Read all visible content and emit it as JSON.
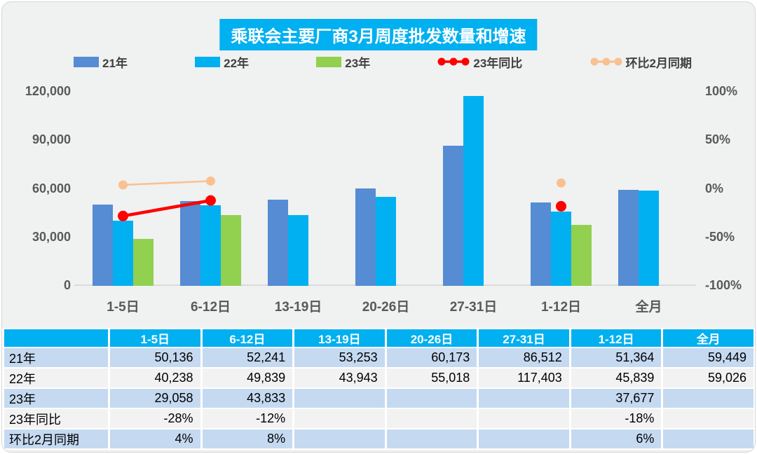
{
  "title": "乘联会主要厂商3月周度批发数量和增速",
  "colors": {
    "banner_bg": "#00B0F0",
    "bar_21": "#558CD3",
    "bar_22": "#00B0F0",
    "bar_23": "#92D050",
    "line_yoy": "#FF0000",
    "line_mom": "#FAC090",
    "table_header_bg": "#00B0F0",
    "table_row_blue": "#C5D9F1",
    "table_row_gray": "#F2F2F2",
    "axis_text": "#595959",
    "page_bg": "#F0F1F1",
    "baseline": "#DBDBDB"
  },
  "chart_data": {
    "type": "bar",
    "subtype": "clustered bars with two overlay line series on secondary percent axis",
    "title": "乘联会主要厂商3月周度批发数量和增速",
    "categories": [
      "1-5日",
      "6-12日",
      "13-19日",
      "20-26日",
      "27-31日",
      "1-12日",
      "全月"
    ],
    "series": [
      {
        "name": "21年",
        "type": "bar",
        "color_key": "bar_21",
        "values": [
          50136,
          52241,
          53253,
          60173,
          86512,
          51364,
          59449
        ]
      },
      {
        "name": "22年",
        "type": "bar",
        "color_key": "bar_22",
        "values": [
          40238,
          49839,
          43943,
          55018,
          117403,
          45839,
          59026
        ]
      },
      {
        "name": "23年",
        "type": "bar",
        "color_key": "bar_23",
        "values": [
          29058,
          43833,
          null,
          null,
          null,
          37677,
          null
        ]
      },
      {
        "name": "23年同比",
        "type": "line",
        "color_key": "line_yoy",
        "axis": "right",
        "values_pct": [
          -28,
          -12,
          null,
          null,
          null,
          -18,
          null
        ]
      },
      {
        "name": "环比2月同期",
        "type": "line",
        "color_key": "line_mom",
        "axis": "right",
        "values_pct": [
          4,
          8,
          null,
          null,
          null,
          6,
          null
        ]
      }
    ],
    "left_axis": {
      "tick_labels": [
        "120,000",
        "90,000",
        "60,000",
        "30,000",
        "0"
      ],
      "tick_values": [
        120000,
        90000,
        60000,
        30000,
        0
      ],
      "min": 0,
      "max": 120000
    },
    "right_axis": {
      "tick_labels": [
        "100%",
        "50%",
        "0%",
        "-50%",
        "-100%"
      ],
      "tick_values": [
        100,
        50,
        0,
        -50,
        -100
      ],
      "min": -100,
      "max": 100
    },
    "legend_position": "top",
    "grid": "baseline only"
  },
  "table": {
    "header": [
      "",
      "1-5日",
      "6-12日",
      "13-19日",
      "20-26日",
      "27-31日",
      "1-12日",
      "全月"
    ],
    "rows": [
      {
        "label": "21年",
        "cells": [
          "50,136",
          "52,241",
          "53,253",
          "60,173",
          "86,512",
          "51,364",
          "59,449"
        ]
      },
      {
        "label": "22年",
        "cells": [
          "40,238",
          "49,839",
          "43,943",
          "55,018",
          "117,403",
          "45,839",
          "59,026"
        ]
      },
      {
        "label": "23年",
        "cells": [
          "29,058",
          "43,833",
          "",
          "",
          "",
          "37,677",
          ""
        ]
      },
      {
        "label": "23年同比",
        "cells": [
          "-28%",
          "-12%",
          "",
          "",
          "",
          "-18%",
          ""
        ]
      },
      {
        "label": "环比2月同期",
        "cells": [
          "4%",
          "8%",
          "",
          "",
          "",
          "6%",
          ""
        ]
      }
    ]
  }
}
